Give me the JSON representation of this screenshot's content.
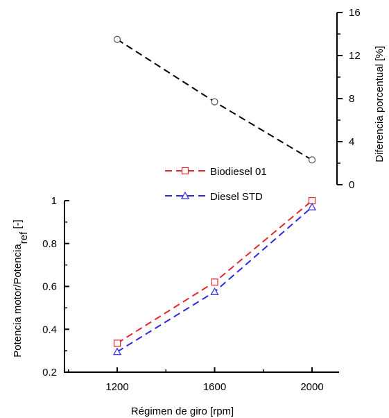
{
  "chart_data": [
    {
      "type": "line",
      "x": [
        1200,
        1600,
        2000
      ],
      "xlim": [
        1000,
        2100
      ],
      "ylim": [
        0,
        16
      ],
      "yticks": [
        0,
        4,
        8,
        12,
        16
      ],
      "yticklabels": [
        "0",
        "4",
        "8",
        "12",
        "16"
      ],
      "ylabel": "Diferencia porcentual [%]",
      "yaxis_side": "right",
      "series": [
        {
          "values": [
            13.5,
            7.7,
            2.3
          ],
          "color": "#000000",
          "dash": "dashed",
          "marker": "circle-open"
        }
      ]
    },
    {
      "type": "line",
      "x": [
        1200,
        1600,
        2000
      ],
      "xlim": [
        1000,
        2100
      ],
      "xticks": [
        1200,
        1600,
        2000
      ],
      "xticklabels": [
        "1200",
        "1600",
        "2000"
      ],
      "ylim": [
        0.2,
        1.0
      ],
      "yticks": [
        0.2,
        0.4,
        0.6,
        0.8,
        1.0
      ],
      "yticklabels": [
        "0.2",
        "0.4",
        "0.6",
        "0.8",
        "1"
      ],
      "xlabel": "Régimen de giro [rpm]",
      "ylabel_main": "Potencia motor/Potencia",
      "ylabel_sub": "ref",
      "ylabel_suffix": " [-]",
      "legend_position": "top-left",
      "series": [
        {
          "name": "Biodiesel 01",
          "values": [
            0.335,
            0.62,
            1.0
          ],
          "color": "#e8242b",
          "dash": "dashed",
          "marker": "square-open"
        },
        {
          "name": "Diesel STD",
          "values": [
            0.295,
            0.575,
            0.97
          ],
          "color": "#2a2ae0",
          "dash": "dashed",
          "marker": "triangle-open"
        }
      ]
    }
  ]
}
